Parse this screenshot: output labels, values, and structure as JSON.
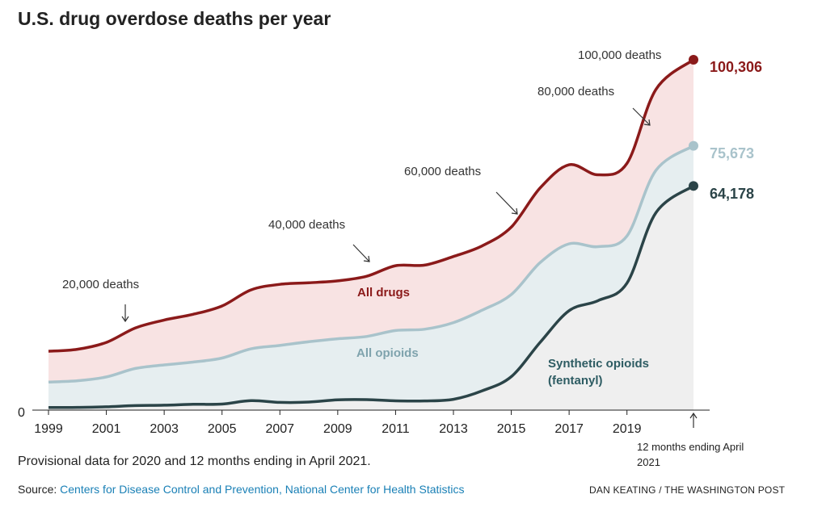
{
  "colors": {
    "all_drugs": "#8b1a1a",
    "all_drugs_fill": "#f8e3e3",
    "all_opioids": "#a9c3cb",
    "all_opioids_fill": "#e6eef0",
    "synthetic": "#2b4448",
    "synthetic_fill": "#efefef",
    "link": "#1a80b6"
  },
  "chart_data": {
    "type": "area",
    "title": "U.S. drug overdose deaths per year",
    "xlabel": "",
    "ylabel": "",
    "xlim": [
      1999,
      2021.3
    ],
    "ylim": [
      0,
      100306
    ],
    "x_ticks": [
      "1999",
      "2001",
      "2003",
      "2005",
      "2007",
      "2009",
      "2011",
      "2013",
      "2015",
      "2017",
      "2019"
    ],
    "y_ticks": [
      "0"
    ],
    "x": [
      1999,
      2000,
      2001,
      2002,
      2003,
      2004,
      2005,
      2006,
      2007,
      2008,
      2009,
      2010,
      2011,
      2012,
      2013,
      2014,
      2015,
      2016,
      2017,
      2018,
      2019,
      2020,
      2021.3
    ],
    "series": [
      {
        "name": "All drugs",
        "values": [
          16849,
          17415,
          19394,
          23518,
          25785,
          27424,
          29813,
          34425,
          36010,
          36450,
          37004,
          38329,
          41340,
          41502,
          43982,
          47055,
          52404,
          63632,
          70237,
          67367,
          70630,
          91799,
          100306
        ]
      },
      {
        "name": "All opioids",
        "values": [
          8050,
          8407,
          9496,
          11920,
          12940,
          13756,
          14918,
          17545,
          18516,
          19582,
          20422,
          21089,
          22784,
          23166,
          25052,
          28647,
          33091,
          42249,
          47600,
          46802,
          49860,
          68630,
          75673
        ]
      },
      {
        "name": "Synthetic opioids (fentanyl)",
        "values": [
          730,
          782,
          957,
          1295,
          1400,
          1664,
          1742,
          2707,
          2213,
          2306,
          2946,
          3007,
          2666,
          2628,
          3105,
          5544,
          9580,
          19413,
          28466,
          31335,
          36359,
          56516,
          64178
        ]
      }
    ],
    "end_labels": [
      "100,306",
      "75,673",
      "64,178"
    ],
    "gridlines": [
      {
        "label": "20,000 deaths",
        "value": 20000
      },
      {
        "label": "40,000 deaths",
        "value": 40000
      },
      {
        "label": "60,000 deaths",
        "value": 60000
      },
      {
        "label": "80,000 deaths",
        "value": 80000
      },
      {
        "label": "100,000 deaths",
        "value": 100000
      }
    ],
    "period_note": [
      "12 months ending April",
      "2021"
    ],
    "grid": false
  },
  "note": "Provisional data for 2020 and 12 months ending in April 2021.",
  "source": {
    "prefix": "Source: ",
    "link_text": "Centers for Disease Control and Prevention, National Center for Health Statistics"
  },
  "credit": "DAN KEATING / THE WASHINGTON POST"
}
